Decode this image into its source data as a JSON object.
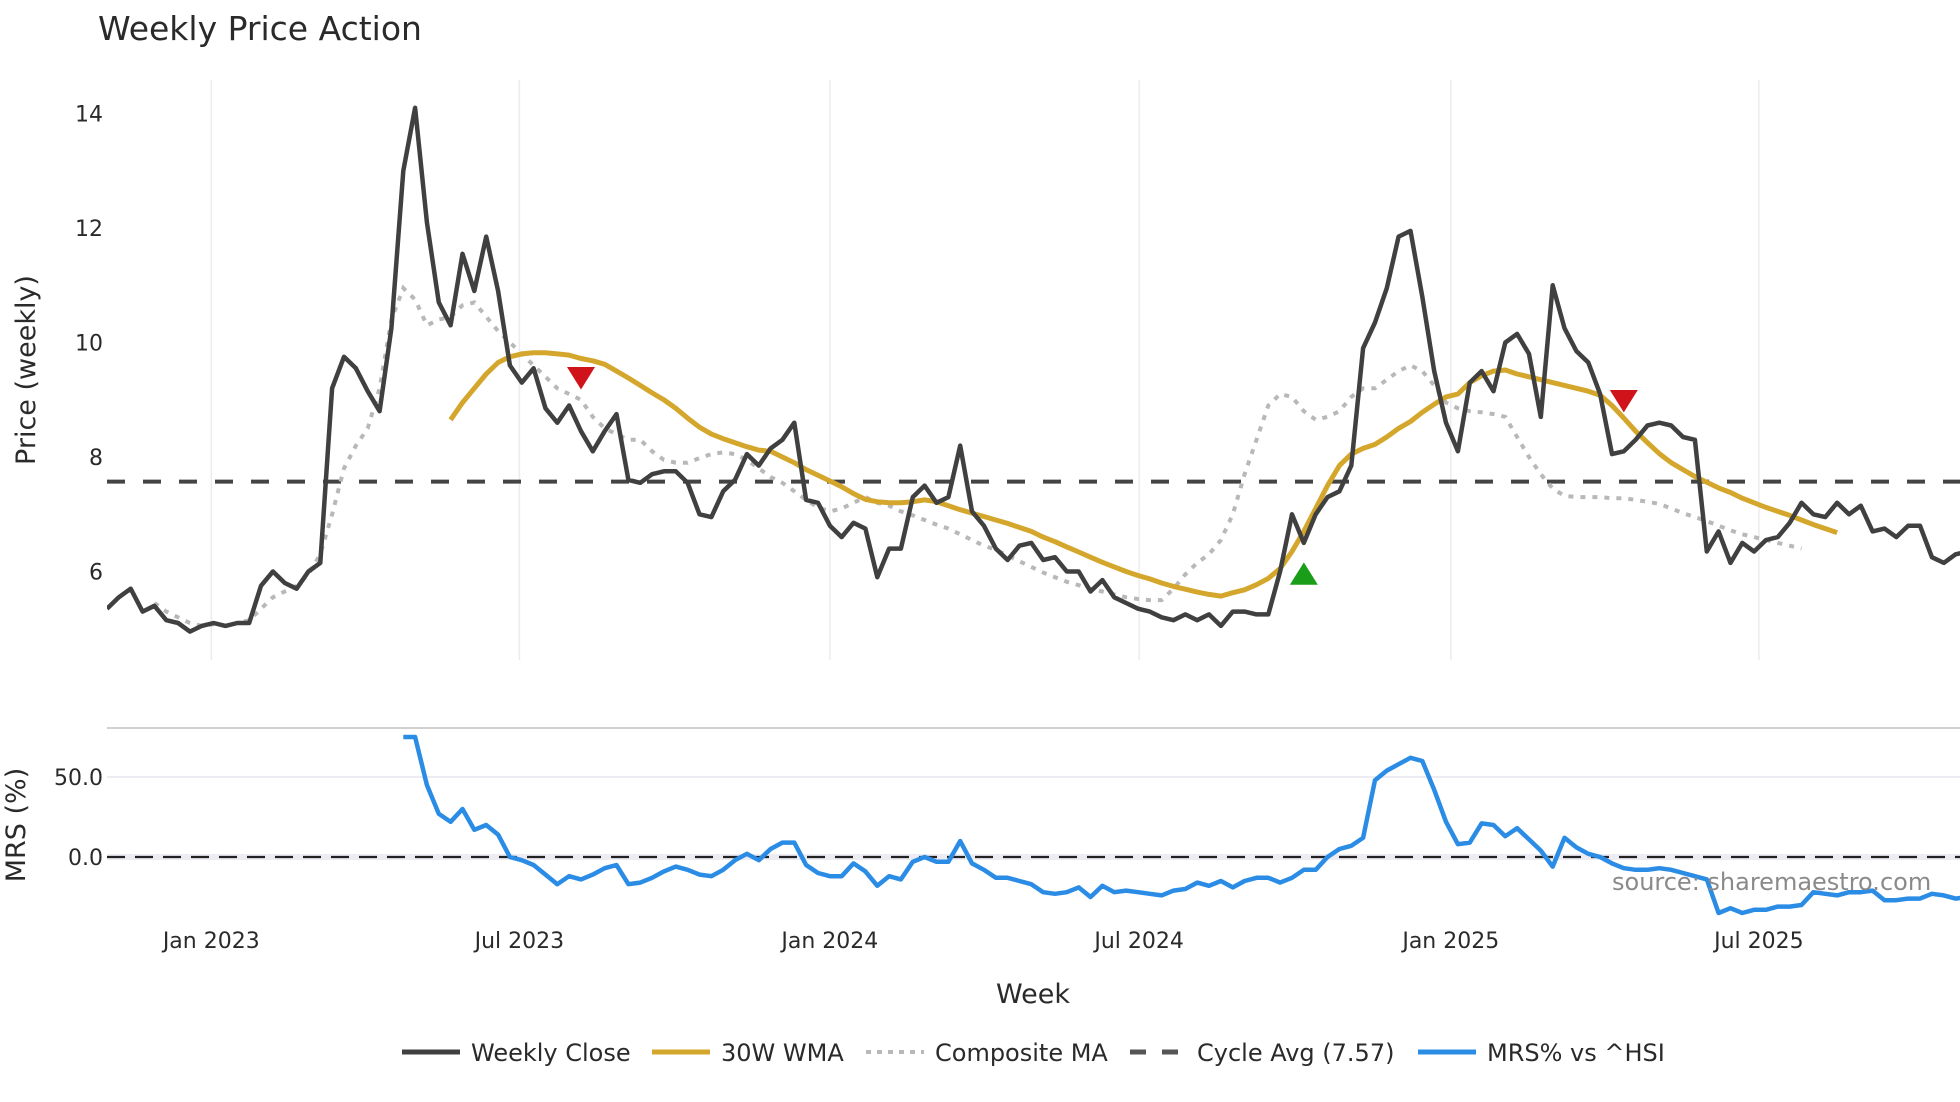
{
  "chart_data": {
    "type": "line",
    "title": "Weekly Price Action",
    "xlabel": "Week",
    "panels": [
      {
        "name": "price",
        "ylabel": "Price (weekly)",
        "yticks": [
          6,
          8,
          10,
          12,
          14
        ],
        "ylim": [
          4.5,
          14.5
        ],
        "grid": "vertical"
      },
      {
        "name": "mrs",
        "ylabel": "MRS (%)",
        "yticks": [
          "0.0",
          "50.0"
        ],
        "ytick_values": [
          0,
          50
        ],
        "ylim": [
          -45,
          80
        ],
        "grid": "horizontal"
      }
    ],
    "xticks": [
      "Jan 2023",
      "Jul 2023",
      "Jan 2024",
      "Jul 2024",
      "Jan 2025",
      "Jul 2025"
    ],
    "xtick_week_index": [
      8.8,
      34.8,
      61.0,
      87.1,
      113.4,
      139.4
    ],
    "cycle_avg": 7.57,
    "series": [
      {
        "name": "Weekly Close",
        "color": "#404040",
        "style": "solid",
        "panel": "price",
        "start_index": 0,
        "values": [
          5.35,
          5.55,
          5.7,
          5.3,
          5.4,
          5.15,
          5.1,
          4.95,
          5.05,
          5.1,
          5.05,
          5.1,
          5.1,
          5.75,
          6.0,
          5.8,
          5.7,
          6.0,
          6.15,
          9.2,
          9.75,
          9.55,
          9.15,
          8.8,
          10.25,
          13.0,
          14.1,
          12.1,
          10.7,
          10.3,
          11.55,
          10.9,
          11.85,
          10.9,
          9.6,
          9.3,
          9.55,
          8.85,
          8.6,
          8.9,
          8.45,
          8.1,
          8.45,
          8.75,
          7.6,
          7.55,
          7.7,
          7.75,
          7.75,
          7.55,
          7.0,
          6.95,
          7.4,
          7.6,
          8.05,
          7.85,
          8.15,
          8.3,
          8.6,
          7.25,
          7.2,
          6.8,
          6.6,
          6.85,
          6.75,
          5.9,
          6.4,
          6.4,
          7.3,
          7.5,
          7.2,
          7.3,
          8.2,
          7.05,
          6.8,
          6.4,
          6.2,
          6.45,
          6.5,
          6.2,
          6.25,
          6.0,
          6.0,
          5.65,
          5.85,
          5.55,
          5.45,
          5.35,
          5.3,
          5.2,
          5.15,
          5.25,
          5.15,
          5.25,
          5.05,
          5.3,
          5.3,
          5.25,
          5.25,
          6.0,
          7.0,
          6.5,
          7.0,
          7.3,
          7.4,
          7.85,
          9.9,
          10.35,
          10.95,
          11.85,
          11.95,
          10.8,
          9.5,
          8.6,
          8.1,
          9.3,
          9.5,
          9.15,
          10.0,
          10.15,
          9.8,
          8.7,
          11.0,
          10.25,
          9.85,
          9.65,
          9.1,
          8.05,
          8.1,
          8.3,
          8.55,
          8.6,
          8.55,
          8.35,
          8.3,
          6.35,
          6.7,
          6.15,
          6.5,
          6.35,
          6.55,
          6.6,
          6.85,
          7.2,
          7.0,
          6.95,
          7.2,
          7.0,
          7.15,
          6.7,
          6.75,
          6.6,
          6.8,
          6.8,
          6.25,
          6.15,
          6.3,
          6.35
        ]
      },
      {
        "name": "30W WMA",
        "color": "#d4a72c",
        "style": "solid",
        "panel": "price",
        "start_index": 29,
        "values": [
          8.65,
          8.95,
          9.2,
          9.45,
          9.65,
          9.75,
          9.8,
          9.82,
          9.82,
          9.8,
          9.78,
          9.72,
          9.68,
          9.62,
          9.5,
          9.38,
          9.25,
          9.12,
          9.0,
          8.85,
          8.68,
          8.52,
          8.4,
          8.32,
          8.25,
          8.18,
          8.12,
          8.1,
          8.0,
          7.9,
          7.78,
          7.68,
          7.58,
          7.48,
          7.36,
          7.26,
          7.22,
          7.2,
          7.2,
          7.22,
          7.25,
          7.22,
          7.15,
          7.08,
          7.02,
          6.96,
          6.9,
          6.84,
          6.77,
          6.7,
          6.6,
          6.52,
          6.43,
          6.34,
          6.25,
          6.16,
          6.08,
          6.0,
          5.93,
          5.87,
          5.8,
          5.74,
          5.69,
          5.64,
          5.6,
          5.57,
          5.63,
          5.68,
          5.77,
          5.88,
          6.05,
          6.35,
          6.7,
          7.1,
          7.5,
          7.85,
          8.05,
          8.15,
          8.22,
          8.35,
          8.5,
          8.62,
          8.78,
          8.92,
          9.05,
          9.1,
          9.3,
          9.42,
          9.5,
          9.52,
          9.45,
          9.4,
          9.35,
          9.3,
          9.25,
          9.2,
          9.15,
          9.08,
          8.9,
          8.68,
          8.45,
          8.25,
          8.06,
          7.9,
          7.78,
          7.66,
          7.56,
          7.46,
          7.38,
          7.28,
          7.2,
          7.12,
          7.05,
          6.98,
          6.9,
          6.82,
          6.75,
          6.68
        ]
      },
      {
        "name": "Composite MA",
        "color": "#b8b8b8",
        "style": "dotted",
        "panel": "price",
        "start_index": 4,
        "values": [
          5.45,
          5.3,
          5.2,
          5.1,
          5.05,
          5.08,
          5.05,
          5.1,
          5.15,
          5.35,
          5.55,
          5.65,
          5.75,
          5.95,
          6.3,
          7.0,
          7.8,
          8.2,
          8.5,
          9.2,
          10.4,
          10.95,
          10.75,
          10.3,
          10.4,
          10.45,
          10.65,
          10.7,
          10.45,
          10.2,
          10.0,
          9.8,
          9.6,
          9.4,
          9.2,
          9.1,
          9.0,
          8.7,
          8.5,
          8.4,
          8.3,
          8.3,
          8.1,
          7.95,
          7.9,
          7.9,
          7.98,
          8.05,
          8.08,
          8.05,
          7.95,
          7.8,
          7.65,
          7.55,
          7.4,
          7.25,
          7.12,
          7.05,
          7.1,
          7.2,
          7.3,
          7.2,
          7.15,
          7.05,
          6.98,
          6.9,
          6.82,
          6.75,
          6.65,
          6.55,
          6.45,
          6.38,
          6.28,
          6.18,
          6.08,
          5.98,
          5.9,
          5.82,
          5.76,
          5.7,
          5.65,
          5.6,
          5.55,
          5.52,
          5.5,
          5.5,
          5.7,
          5.95,
          6.15,
          6.3,
          6.55,
          7.0,
          7.7,
          8.3,
          8.9,
          9.1,
          9.05,
          8.8,
          8.65,
          8.7,
          8.8,
          9.05,
          9.2,
          9.2,
          9.35,
          9.5,
          9.6,
          9.5,
          9.25,
          8.95,
          8.85,
          8.8,
          8.78,
          8.75,
          8.7,
          8.35,
          8.0,
          7.7,
          7.45,
          7.32,
          7.3,
          7.3,
          7.3,
          7.28,
          7.28,
          7.25,
          7.22,
          7.18,
          7.1,
          7.02,
          6.95,
          6.88,
          6.8,
          6.72,
          6.65,
          6.6,
          6.55,
          6.5,
          6.45,
          6.4
        ]
      },
      {
        "name": "Cycle Avg (7.57)",
        "color": "#444444",
        "style": "dashed",
        "panel": "price",
        "constant": 7.57
      },
      {
        "name": "MRS% vs ^HSI",
        "color": "#2b8ce6",
        "style": "solid",
        "panel": "mrs",
        "start_index": 25,
        "values": [
          75,
          75,
          45,
          27,
          22,
          30,
          17,
          20,
          14,
          0,
          -2,
          -5,
          -11,
          -17,
          -12,
          -14,
          -11,
          -7,
          -5,
          -17,
          -16,
          -13,
          -9,
          -6,
          -8,
          -11,
          -12,
          -8,
          -2,
          2,
          -2,
          5,
          9,
          9,
          -5,
          -10,
          -12,
          -12,
          -4,
          -9,
          -18,
          -12,
          -14,
          -3,
          0,
          -3,
          -3,
          10,
          -4,
          -8,
          -13,
          -13,
          -15,
          -17,
          -22,
          -23,
          -22,
          -19,
          -25,
          -18,
          -22,
          -21,
          -22,
          -23,
          -24,
          -21,
          -20,
          -16,
          -18,
          -15,
          -19,
          -15,
          -13,
          -13,
          -16,
          -13,
          -8,
          -8,
          0,
          5,
          7,
          12,
          48,
          54,
          58,
          62,
          60,
          42,
          22,
          8,
          9,
          21,
          20,
          13,
          18,
          11,
          4,
          -6,
          12,
          6,
          2,
          0,
          -4,
          -7,
          -8,
          -8,
          -7,
          -8,
          -10,
          -12,
          -14,
          -35,
          -32,
          -35,
          -33,
          -33,
          -31,
          -31,
          -30,
          -22,
          -23,
          -24,
          -22,
          -22,
          -21,
          -27,
          -27,
          -26,
          -26,
          -23,
          -24,
          -26,
          -25
        ]
      }
    ],
    "markers": [
      {
        "type": "sell",
        "shape": "triangle-down",
        "color": "#d0121b",
        "week_index": 40,
        "value": 9.4
      },
      {
        "type": "buy",
        "shape": "triangle-up",
        "color": "#1a9e1a",
        "week_index": 101,
        "value": 5.94
      },
      {
        "type": "sell",
        "shape": "triangle-down",
        "color": "#d0121b",
        "week_index": 128,
        "value": 9.0
      }
    ],
    "legend": {
      "position": "bottom",
      "entries": [
        {
          "label": "Weekly Close",
          "color": "#404040",
          "style": "solid"
        },
        {
          "label": "30W WMA",
          "color": "#d4a72c",
          "style": "solid"
        },
        {
          "label": "Composite MA",
          "color": "#b8b8b8",
          "style": "dotted"
        },
        {
          "label": "Cycle Avg (7.57)",
          "color": "#555555",
          "style": "dashed"
        },
        {
          "label": "MRS% vs ^HSI",
          "color": "#2b8ce6",
          "style": "solid"
        }
      ]
    },
    "annotation": "source: sharemaestro.com"
  }
}
